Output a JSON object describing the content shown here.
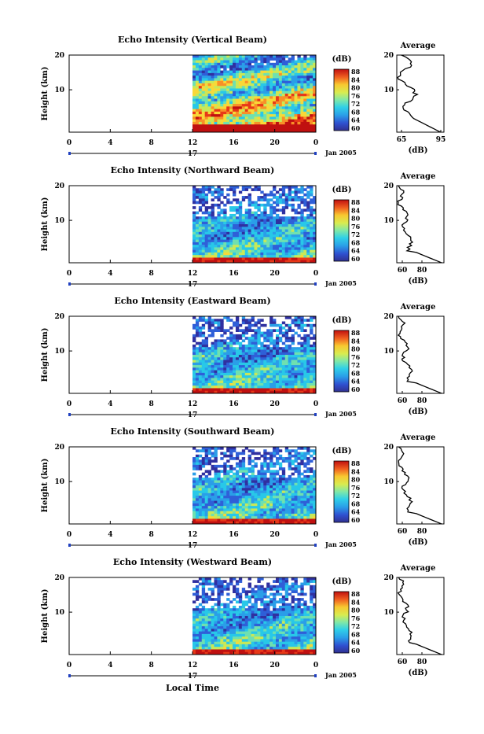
{
  "panels": [
    {
      "title": "Echo Intensity (Vertical Beam)",
      "avg_xticks": [
        "65",
        "95"
      ],
      "avg_range": [
        65,
        95
      ],
      "seed": 11
    },
    {
      "title": "Echo Intensity (Northward Beam)",
      "avg_xticks": [
        "60",
        "80"
      ],
      "avg_range": [
        60,
        90
      ],
      "seed": 23
    },
    {
      "title": "Echo Intensity (Eastward Beam)",
      "avg_xticks": [
        "60",
        "80"
      ],
      "avg_range": [
        60,
        90
      ],
      "seed": 37
    },
    {
      "title": "Echo Intensity (Southward Beam)",
      "avg_xticks": [
        "60",
        "80"
      ],
      "avg_range": [
        60,
        90
      ],
      "seed": 41
    },
    {
      "title": "Echo Intensity (Westward Beam)",
      "avg_xticks": [
        "60",
        "80"
      ],
      "avg_range": [
        60,
        90
      ],
      "seed": 53
    }
  ],
  "ylabel": "Height (km)",
  "yticks": [
    "20",
    "10"
  ],
  "xticks": [
    "0",
    "4",
    "8",
    "12",
    "16",
    "20",
    "0"
  ],
  "day_label": "17",
  "month_label": "Jan 2005",
  "xlabel_bottom": "Local Time",
  "colorbar": {
    "unit": "(dB)",
    "ticks": [
      "88",
      "84",
      "80",
      "76",
      "72",
      "68",
      "64",
      "60"
    ],
    "colors": [
      "#3030a0",
      "#2f5fd8",
      "#2a9ee8",
      "#28c8e8",
      "#6fe0b0",
      "#c8e858",
      "#f8d838",
      "#f89028",
      "#e83818",
      "#c01010"
    ]
  },
  "avg_title": "Average",
  "avg_yticks": [
    "20",
    "10"
  ],
  "avg_xlabel": "(dB)"
}
